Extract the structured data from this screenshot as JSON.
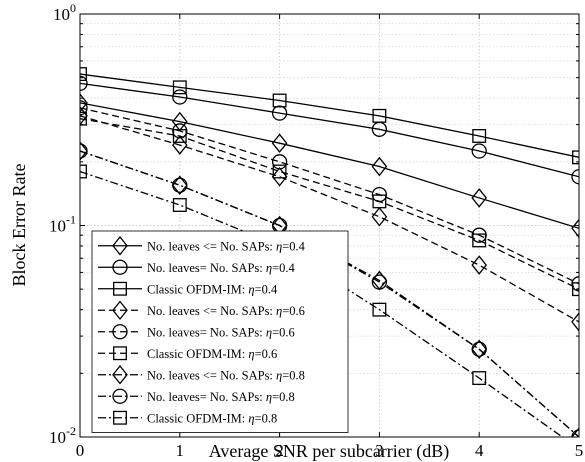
{
  "chart_data": {
    "type": "line",
    "xlabel": "Average SNR per subcarrier (dB)",
    "ylabel": "Block Error Rate",
    "xlim": [
      0,
      5
    ],
    "ylim": [
      0.01,
      1
    ],
    "yscale": "log",
    "grid": true,
    "legend_position": "bottom-left",
    "x_ticks": [
      "0",
      "1",
      "2",
      "3",
      "4",
      "5"
    ],
    "y_ticks": [
      {
        "base": "10",
        "exp": "0",
        "value": 1
      },
      {
        "base": "10",
        "exp": "-1",
        "value": 0.1
      },
      {
        "base": "10",
        "exp": "-2",
        "value": 0.01
      }
    ],
    "x": [
      0,
      1,
      2,
      3,
      4,
      5
    ],
    "series": [
      {
        "name": "No. leaves <= No. SAPs: η=0.4",
        "label_prefix": "No. leaves <= No. SAPs: ",
        "label_eta": "=0.4",
        "marker": "diamond",
        "dash": "solid",
        "values": [
          0.38,
          0.31,
          0.245,
          0.19,
          0.135,
          0.097
        ]
      },
      {
        "name": "No. leaves= No. SAPs: η=0.4",
        "label_prefix": "No. leaves= No. SAPs: ",
        "label_eta": "=0.4",
        "marker": "circle",
        "dash": "solid",
        "values": [
          0.47,
          0.405,
          0.34,
          0.285,
          0.225,
          0.17
        ]
      },
      {
        "name": "Classic OFDM-IM: η=0.4",
        "label_prefix": "Classic OFDM-IM: ",
        "label_eta": "=0.4",
        "marker": "square",
        "dash": "solid",
        "values": [
          0.52,
          0.45,
          0.39,
          0.33,
          0.265,
          0.21
        ]
      },
      {
        "name": "No. leaves <= No. SAPs: η=0.6",
        "label_prefix": "No. leaves <= No. SAPs: ",
        "label_eta": "=0.6",
        "marker": "diamond",
        "dash": "dashed",
        "values": [
          0.33,
          0.24,
          0.17,
          0.11,
          0.065,
          0.035
        ]
      },
      {
        "name": "No. leaves= No. SAPs: η=0.6",
        "label_prefix": "No. leaves= No. SAPs: ",
        "label_eta": "=0.6",
        "marker": "circle",
        "dash": "dashed",
        "values": [
          0.36,
          0.28,
          0.2,
          0.14,
          0.09,
          0.053
        ]
      },
      {
        "name": "Classic OFDM-IM: η=0.6",
        "label_prefix": "Classic OFDM-IM: ",
        "label_eta": "=0.6",
        "marker": "square",
        "dash": "dashed",
        "values": [
          0.32,
          0.265,
          0.18,
          0.13,
          0.085,
          0.05
        ]
      },
      {
        "name": "No. leaves <= No. SAPs: η=0.8",
        "label_prefix": "No. leaves <= No. SAPs: ",
        "label_eta": "=0.8",
        "marker": "diamond",
        "dash": "dashdot",
        "values": [
          0.225,
          0.155,
          0.1,
          0.055,
          0.026,
          0.01
        ]
      },
      {
        "name": "No. leaves= No. SAPs: η=0.8",
        "label_prefix": "No. leaves= No. SAPs: ",
        "label_eta": "=0.8",
        "marker": "circle",
        "dash": "dashdot",
        "values": [
          0.225,
          0.155,
          0.1,
          0.054,
          0.026,
          0.01
        ]
      },
      {
        "name": "Classic OFDM-IM: η=0.8",
        "label_prefix": "Classic OFDM-IM: ",
        "label_eta": "=0.8",
        "marker": "square",
        "dash": "dashdot",
        "values": [
          0.18,
          0.125,
          0.08,
          0.04,
          0.019,
          0.0088
        ]
      }
    ]
  }
}
